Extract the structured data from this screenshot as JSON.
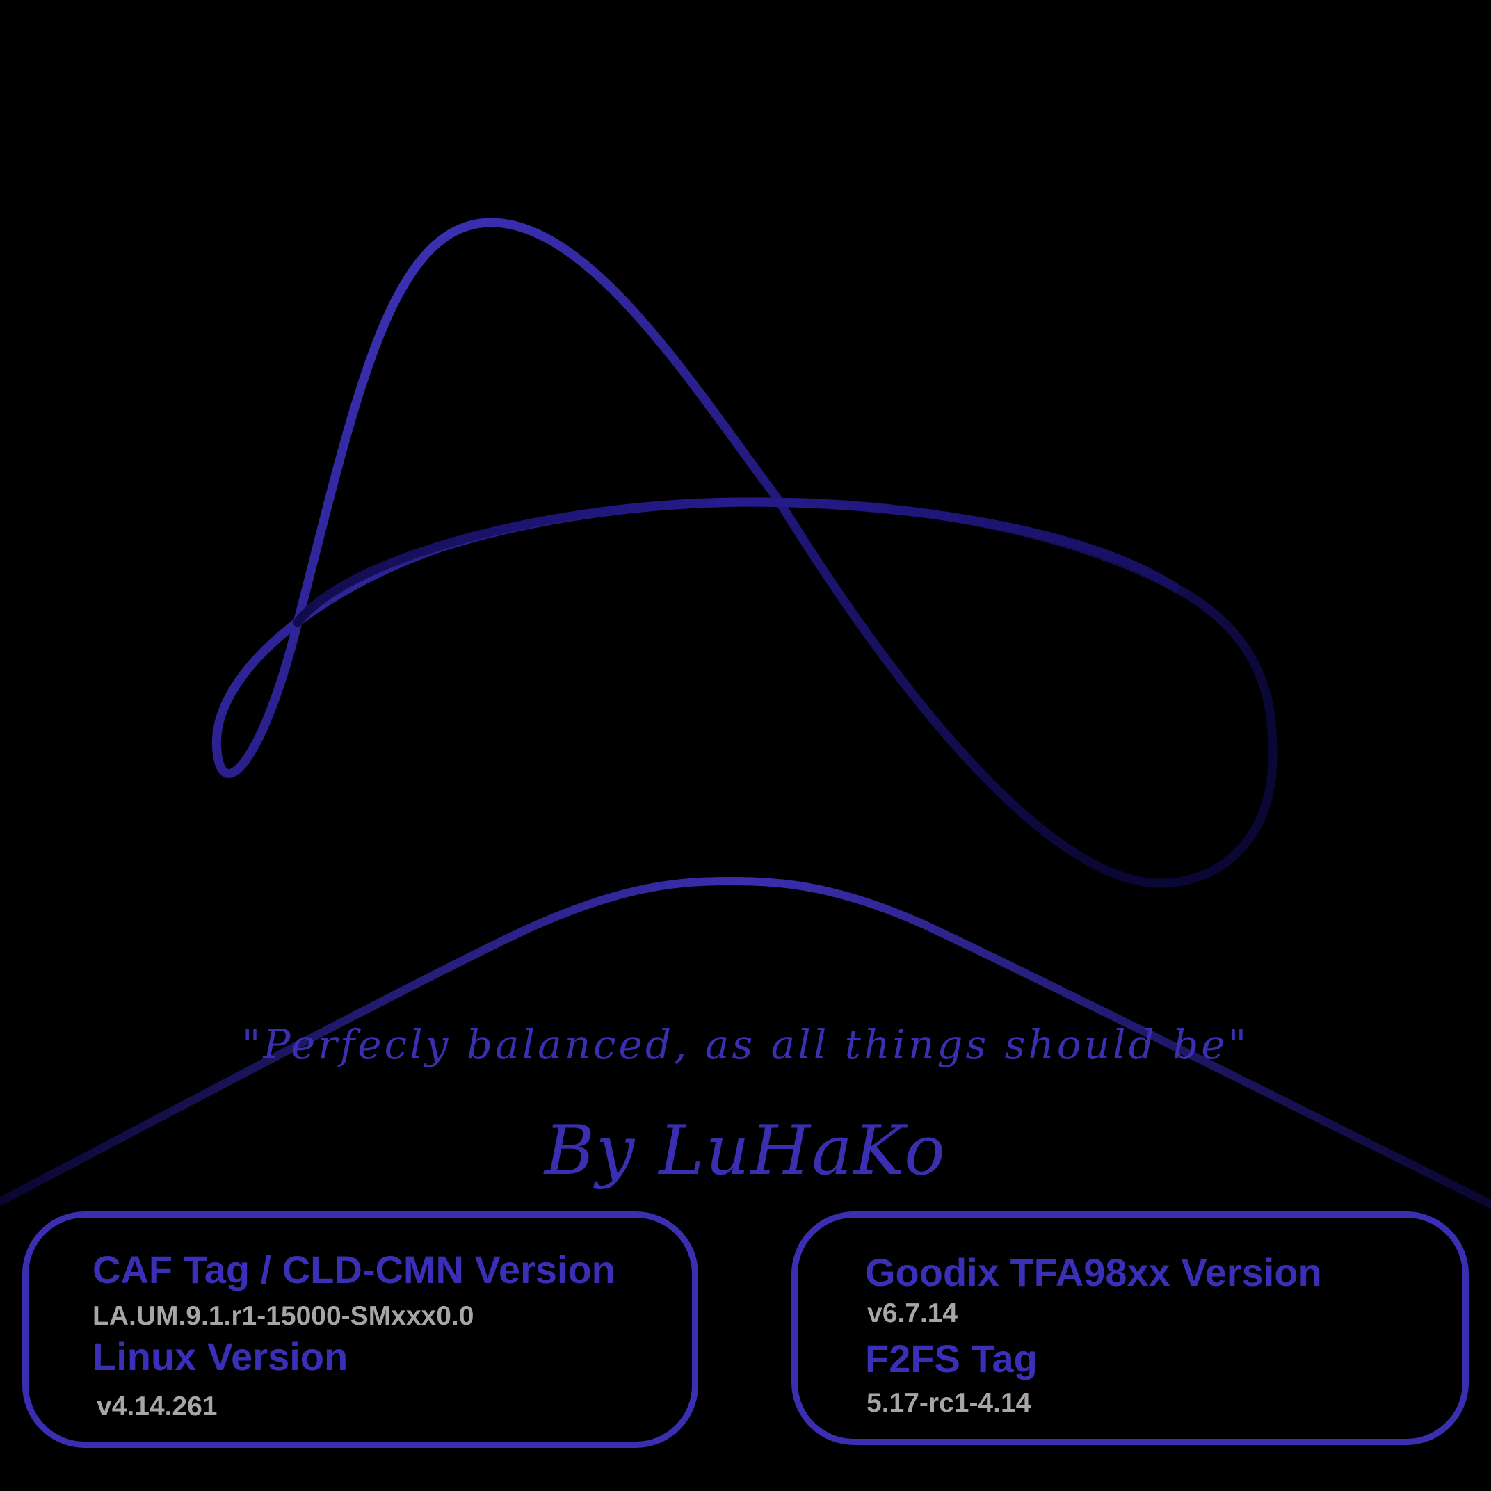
{
  "colors": {
    "background": "#000000",
    "accent": "#3a2fb0",
    "accent_dark": "#110b4a",
    "value_text": "#a6a6a6"
  },
  "tagline": "\"Perfecly balanced, as all things should be\"",
  "signature": "By LuHaKo",
  "cards": {
    "left": {
      "label_1": "CAF Tag / CLD-CMN Version",
      "value_1": "LA.UM.9.1.r1-15000-SMxxx0.0",
      "label_2": "Linux Version",
      "value_2": "v4.14.261"
    },
    "right": {
      "label_1": "Goodix TFA98xx Version",
      "value_1": "v6.7.14",
      "label_2": "F2FS Tag",
      "value_2": "5.17-rc1-4.14"
    }
  }
}
